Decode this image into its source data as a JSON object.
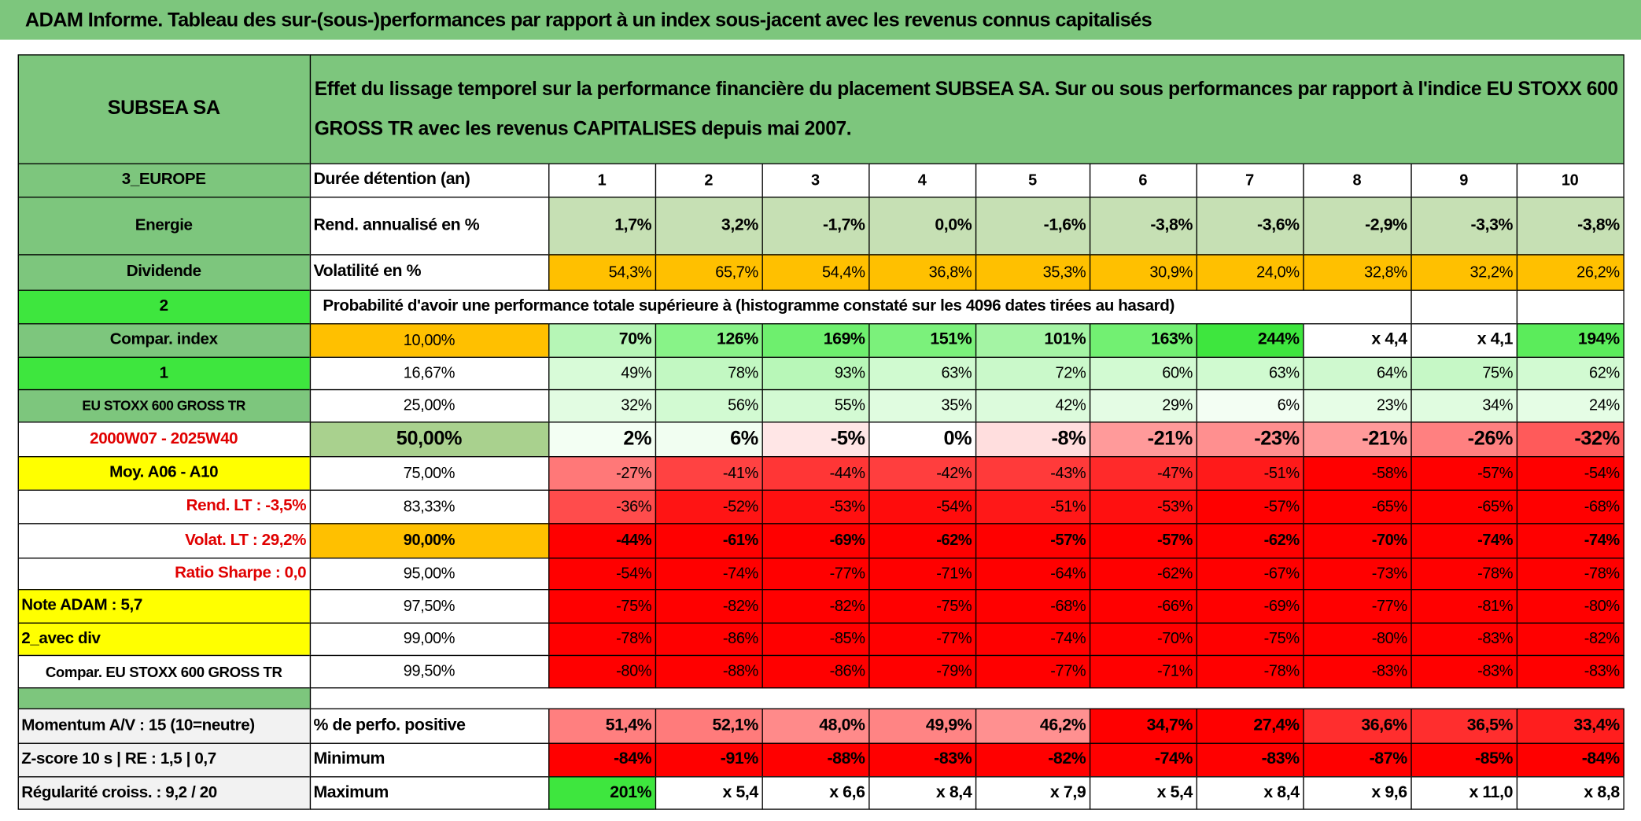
{
  "header": {
    "title": "ADAM Informe. Tableau des sur-(sous-)performances par rapport à un index sous-jacent avec les revenus connus capitalisés"
  },
  "table": {
    "rows": [
      [
        "SUBSEA SA",
        "Effet du lissage temporel sur la performance financière du placement SUBSEA SA. Sur ou sous performances par rapport à l'indice EU STOXX 600 GROSS TR avec les revenus CAPITALISES depuis mai 2007."
      ],
      [
        "3_EUROPE",
        "Durée détention (an)",
        "1",
        "2",
        "3",
        "4",
        "5",
        "6",
        "7",
        "8",
        "9",
        "10"
      ],
      [
        "Energie",
        "Rend. annualisé en %",
        "1,7%",
        "3,2%",
        "-1,7%",
        "0,0%",
        "-1,6%",
        "-3,8%",
        "-3,6%",
        "-2,9%",
        "-3,3%",
        "-3,8%"
      ],
      [
        "Dividende",
        "Volatilité en %",
        "54,3%",
        "65,7%",
        "54,4%",
        "36,8%",
        "35,3%",
        "30,9%",
        "24,0%",
        "32,8%",
        "32,2%",
        "26,2%"
      ],
      [
        "2",
        "Probabilité d'avoir une performance totale supérieure à (histogramme constaté sur les 4096 dates tirées au hasard)"
      ],
      [
        "Compar. index",
        "10,00%",
        "70%",
        "126%",
        "169%",
        "151%",
        "101%",
        "163%",
        "244%",
        "x 4,4",
        "x 4,1",
        "194%"
      ],
      [
        "1",
        "16,67%",
        "49%",
        "78%",
        "93%",
        "63%",
        "72%",
        "60%",
        "63%",
        "64%",
        "75%",
        "62%"
      ],
      [
        "EU STOXX 600 GROSS TR",
        "25,00%",
        "32%",
        "56%",
        "55%",
        "35%",
        "42%",
        "29%",
        "6%",
        "23%",
        "34%",
        "24%"
      ],
      [
        "2000W07 - 2025W40",
        "50,00%",
        "2%",
        "6%",
        "-5%",
        "0%",
        "-8%",
        "-21%",
        "-23%",
        "-21%",
        "-26%",
        "-32%"
      ],
      [
        "Moy. A06 - A10",
        "75,00%",
        "-27%",
        "-41%",
        "-44%",
        "-42%",
        "-43%",
        "-47%",
        "-51%",
        "-58%",
        "-57%",
        "-54%"
      ],
      [
        "Rend. LT :   -3,5%",
        "83,33%",
        "-36%",
        "-52%",
        "-53%",
        "-54%",
        "-51%",
        "-53%",
        "-57%",
        "-65%",
        "-65%",
        "-68%"
      ],
      [
        "Volat. LT :   29,2%",
        "90,00%",
        "-44%",
        "-61%",
        "-69%",
        "-62%",
        "-57%",
        "-57%",
        "-62%",
        "-70%",
        "-74%",
        "-74%"
      ],
      [
        "Ratio Sharpe :    0,0",
        "95,00%",
        "-54%",
        "-74%",
        "-77%",
        "-71%",
        "-64%",
        "-62%",
        "-67%",
        "-73%",
        "-78%",
        "-78%"
      ],
      [
        "Note ADAM : 5,7",
        "97,50%",
        "-75%",
        "-82%",
        "-82%",
        "-75%",
        "-68%",
        "-66%",
        "-69%",
        "-77%",
        "-81%",
        "-80%"
      ],
      [
        "2_avec div",
        "99,00%",
        "-78%",
        "-86%",
        "-85%",
        "-77%",
        "-74%",
        "-70%",
        "-75%",
        "-80%",
        "-83%",
        "-82%"
      ],
      [
        "Compar. EU STOXX 600 GROSS TR",
        "99,50%",
        "-80%",
        "-88%",
        "-86%",
        "-79%",
        "-77%",
        "-71%",
        "-78%",
        "-83%",
        "-83%",
        "-83%"
      ],
      [
        "Momentum A/V : 15 (10=neutre)",
        "% de perfo. positive",
        "51,4%",
        "52,1%",
        "48,0%",
        "49,9%",
        "46,2%",
        "34,7%",
        "27,4%",
        "36,6%",
        "36,5%",
        "33,4%"
      ],
      [
        "Z-score 10 s | RE : 1,5 | 0,7",
        "Minimum",
        "-84%",
        "-91%",
        "-88%",
        "-83%",
        "-82%",
        "-74%",
        "-83%",
        "-87%",
        "-85%",
        "-84%"
      ],
      [
        "Régularité croiss. : 9,2 / 20",
        "Maximum",
        "201%",
        "x 5,4",
        "x 6,6",
        "x 8,4",
        "x 7,9",
        "x 5,4",
        "x 8,4",
        "x 9,6",
        "x 11,0",
        "x 8,8"
      ]
    ]
  }
}
